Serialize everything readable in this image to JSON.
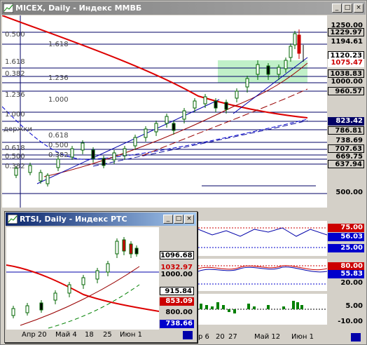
{
  "main_window": {
    "title": "MICEX, Daily - Индекс ММВБ",
    "price_axis": [
      "1250.00",
      "1229.97",
      "1194.61",
      "1120.23",
      "1075.47",
      "1038.83",
      "1000.00",
      "960.57",
      "823.42",
      "786.81",
      "738.69",
      "707.63",
      "669.75",
      "637.94",
      "500.00"
    ],
    "fib_labels": [
      "0.500",
      "1.618",
      "1.618",
      "0.382",
      "1.236",
      "1.236",
      "1.000",
      "1.000",
      "0.618",
      "0.618",
      "0.500",
      "0.500",
      "0.382",
      "0.382"
    ],
    "left_text": "держки",
    "x_labels": [
      "р 6",
      "20",
      "27",
      "Май 12",
      "Июн 1"
    ],
    "stoch_labels": [
      "75.00",
      "56.03",
      "25.00"
    ],
    "rsi_labels": [
      "80.00",
      "55.83",
      "20.00"
    ],
    "macd_labels": [
      "5.00",
      "-10.00"
    ]
  },
  "inner_window": {
    "title": "RTSI, Daily - Индекс РТС",
    "price_axis": [
      "1096.68",
      "1032.97",
      "1000.00",
      "915.84",
      "853.09",
      "800.00",
      "738.66"
    ],
    "x_labels": [
      "Апр 20",
      "Май 4",
      "18",
      "25",
      "Июн 1"
    ]
  },
  "colors": {
    "axis_red": "#cc0000",
    "axis_blue": "#0000cc",
    "axis_black": "#000000",
    "green_zone": "#c0f0c8"
  }
}
